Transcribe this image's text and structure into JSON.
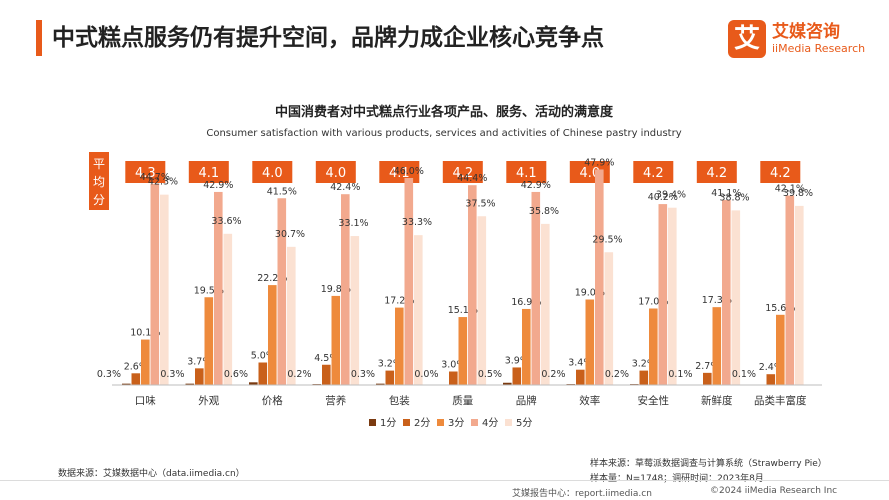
{
  "slide_title": "中式糕点服务仍有提升空间，品牌力成企业核心竞争点",
  "logo": {
    "mark": "艾",
    "name_cn": "艾媒咨询",
    "name_en": "iiMedia Research"
  },
  "source_left": "数据来源：艾媒数据中心（data.iimedia.cn）",
  "source_right_1": "样本来源：草莓派数据调查与计算系统（Strawberry Pie）",
  "source_right_2": "样本量：N=1748；调研时间：2023年8月",
  "footer_center": "艾媒报告中心：report.iimedia.cn",
  "footer_right": "©2024  iiMedia Research  Inc",
  "colors": {
    "accent": "#e85a1a",
    "s1": "#7a3a10",
    "s2": "#c9601a",
    "s3": "#ee8a3c",
    "s4": "#f2a98e",
    "s5": "#fbe1d2"
  },
  "chart_data": {
    "type": "bar",
    "title": "中国消费者对中式糕点行业各项产品、服务、活动的满意度",
    "subtitle": "Consumer satisfaction with various products, services and activities of Chinese pastry industry",
    "avg_label": "平均分",
    "categories": [
      "口味",
      "外观",
      "价格",
      "营养",
      "包装",
      "质量",
      "品牌",
      "效率",
      "安全性",
      "新鲜度",
      "品类丰富度"
    ],
    "averages": [
      "4.3",
      "4.1",
      "4.0",
      "4.0",
      "4.1",
      "4.2",
      "4.1",
      "4.0",
      "4.2",
      "4.2",
      "4.2"
    ],
    "series": [
      {
        "name": "1分",
        "values": [
          0.3,
          0.3,
          0.6,
          0.2,
          0.3,
          0.0,
          0.5,
          0.2,
          0.2,
          0.1,
          0.1
        ]
      },
      {
        "name": "2分",
        "values": [
          2.6,
          3.7,
          5.0,
          4.5,
          3.2,
          3.0,
          3.9,
          3.4,
          3.2,
          2.7,
          2.4
        ]
      },
      {
        "name": "3分",
        "values": [
          10.1,
          19.5,
          22.2,
          19.8,
          17.2,
          15.1,
          16.9,
          19.0,
          17.0,
          17.3,
          15.6
        ]
      },
      {
        "name": "4分",
        "values": [
          44.7,
          42.9,
          41.5,
          42.4,
          46.0,
          44.4,
          42.9,
          47.9,
          40.2,
          41.1,
          42.1
        ]
      },
      {
        "name": "5分",
        "values": [
          42.3,
          33.6,
          30.7,
          33.1,
          33.3,
          37.5,
          35.8,
          29.5,
          39.4,
          38.8,
          39.8
        ]
      }
    ],
    "unit": "%",
    "ylim": [
      0,
      50
    ],
    "grid": false,
    "legend": "bottom"
  }
}
